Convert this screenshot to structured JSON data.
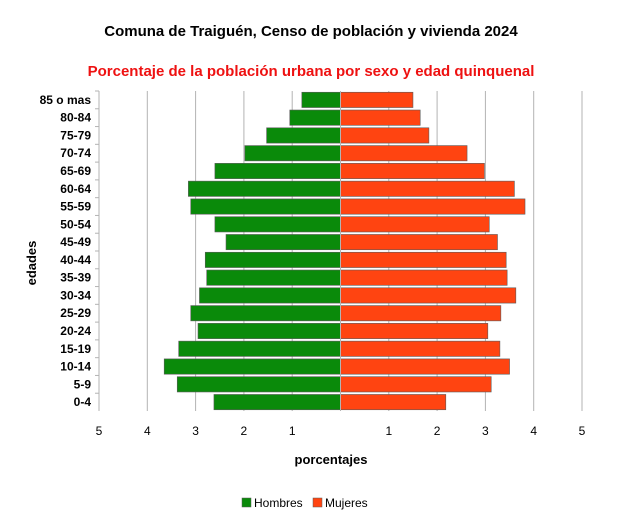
{
  "chart_data": {
    "type": "bar",
    "orientation": "horizontal-population-pyramid",
    "title": "Comuna de Traiguén, Censo de población y vivienda 2024",
    "subtitle": "Porcentaje de la población urbana por sexo y edad quinquenal",
    "xlabel": "porcentajes",
    "ylabel": "edades",
    "xlim": [
      -5,
      5
    ],
    "xticks": [
      "5",
      "4",
      "3",
      "2",
      "1",
      "",
      "1",
      "2",
      "3",
      "4",
      "5"
    ],
    "grid": true,
    "legend_position": "bottom",
    "categories": [
      "0-4",
      "5-9",
      "10-14",
      "15-19",
      "20-24",
      "25-29",
      "30-34",
      "35-39",
      "40-44",
      "45-49",
      "50-54",
      "55-59",
      "60-64",
      "65-69",
      "70-74",
      "75-79",
      "80-84",
      "85 o mas"
    ],
    "series": [
      {
        "name": "Hombres",
        "color": "#0a8a0a",
        "values": [
          2.62,
          3.38,
          3.65,
          3.35,
          2.95,
          3.1,
          2.92,
          2.77,
          2.8,
          2.37,
          2.6,
          3.1,
          3.15,
          2.6,
          1.98,
          1.53,
          1.05,
          0.8
        ]
      },
      {
        "name": "Mujeres",
        "color": "#ff4411",
        "values": [
          2.18,
          3.12,
          3.5,
          3.3,
          3.05,
          3.32,
          3.63,
          3.45,
          3.43,
          3.25,
          3.08,
          3.82,
          3.6,
          2.98,
          2.62,
          1.83,
          1.65,
          1.5
        ]
      }
    ]
  }
}
